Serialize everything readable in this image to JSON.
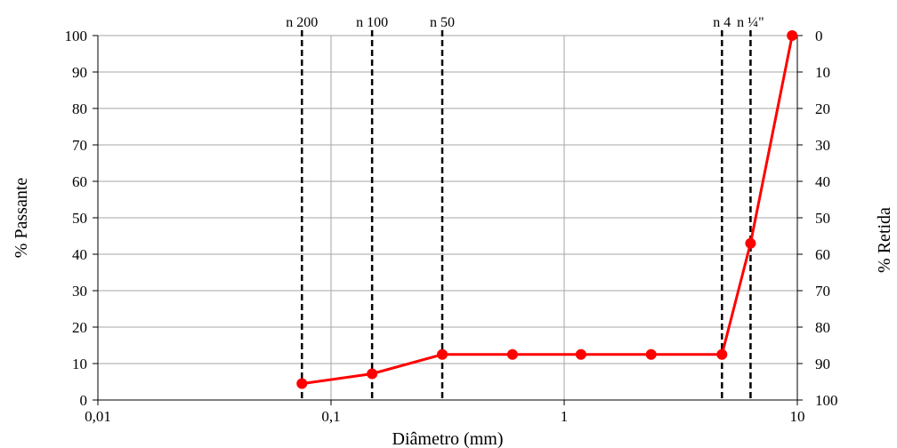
{
  "chart_data": {
    "type": "line",
    "xscale": "log",
    "xlabel": "Diâmetro (mm)",
    "ylabel_left": "% Passante",
    "ylabel_right": "% Retida",
    "xlim": [
      0.01,
      10
    ],
    "ylim": [
      0,
      100
    ],
    "x_ticks": [
      {
        "value": 0.01,
        "label": "0,01"
      },
      {
        "value": 0.1,
        "label": "0,1"
      },
      {
        "value": 1,
        "label": "1"
      },
      {
        "value": 10,
        "label": "10"
      }
    ],
    "y_left_ticks": [
      {
        "value": 0,
        "label": "0"
      },
      {
        "value": 10,
        "label": "10"
      },
      {
        "value": 20,
        "label": "20"
      },
      {
        "value": 30,
        "label": "30"
      },
      {
        "value": 40,
        "label": "40"
      },
      {
        "value": 50,
        "label": "50"
      },
      {
        "value": 60,
        "label": "60"
      },
      {
        "value": 70,
        "label": "70"
      },
      {
        "value": 80,
        "label": "80"
      },
      {
        "value": 90,
        "label": "90"
      },
      {
        "value": 100,
        "label": "100"
      }
    ],
    "y_right_ticks": [
      {
        "value": 100,
        "label": "0"
      },
      {
        "value": 90,
        "label": "10"
      },
      {
        "value": 80,
        "label": "20"
      },
      {
        "value": 70,
        "label": "30"
      },
      {
        "value": 60,
        "label": "40"
      },
      {
        "value": 50,
        "label": "50"
      },
      {
        "value": 40,
        "label": "60"
      },
      {
        "value": 30,
        "label": "70"
      },
      {
        "value": 20,
        "label": "80"
      },
      {
        "value": 10,
        "label": "90"
      },
      {
        "value": 0,
        "label": "100"
      }
    ],
    "grid": true,
    "series": [
      {
        "color": "#ff0000",
        "points": [
          {
            "x": 0.075,
            "y": 4.5
          },
          {
            "x": 0.15,
            "y": 7.2
          },
          {
            "x": 0.3,
            "y": 12.5
          },
          {
            "x": 0.6,
            "y": 12.5
          },
          {
            "x": 1.18,
            "y": 12.5
          },
          {
            "x": 2.36,
            "y": 12.5
          },
          {
            "x": 4.75,
            "y": 12.5
          },
          {
            "x": 6.3,
            "y": 43
          },
          {
            "x": 9.5,
            "y": 100
          }
        ]
      }
    ],
    "sieves": [
      {
        "label": "n 200",
        "x": 0.075
      },
      {
        "label": "n 100",
        "x": 0.15
      },
      {
        "label": "n 50",
        "x": 0.3
      },
      {
        "label": "n 4",
        "x": 4.75
      },
      {
        "label": "n ¼\"",
        "x": 6.3
      }
    ]
  }
}
